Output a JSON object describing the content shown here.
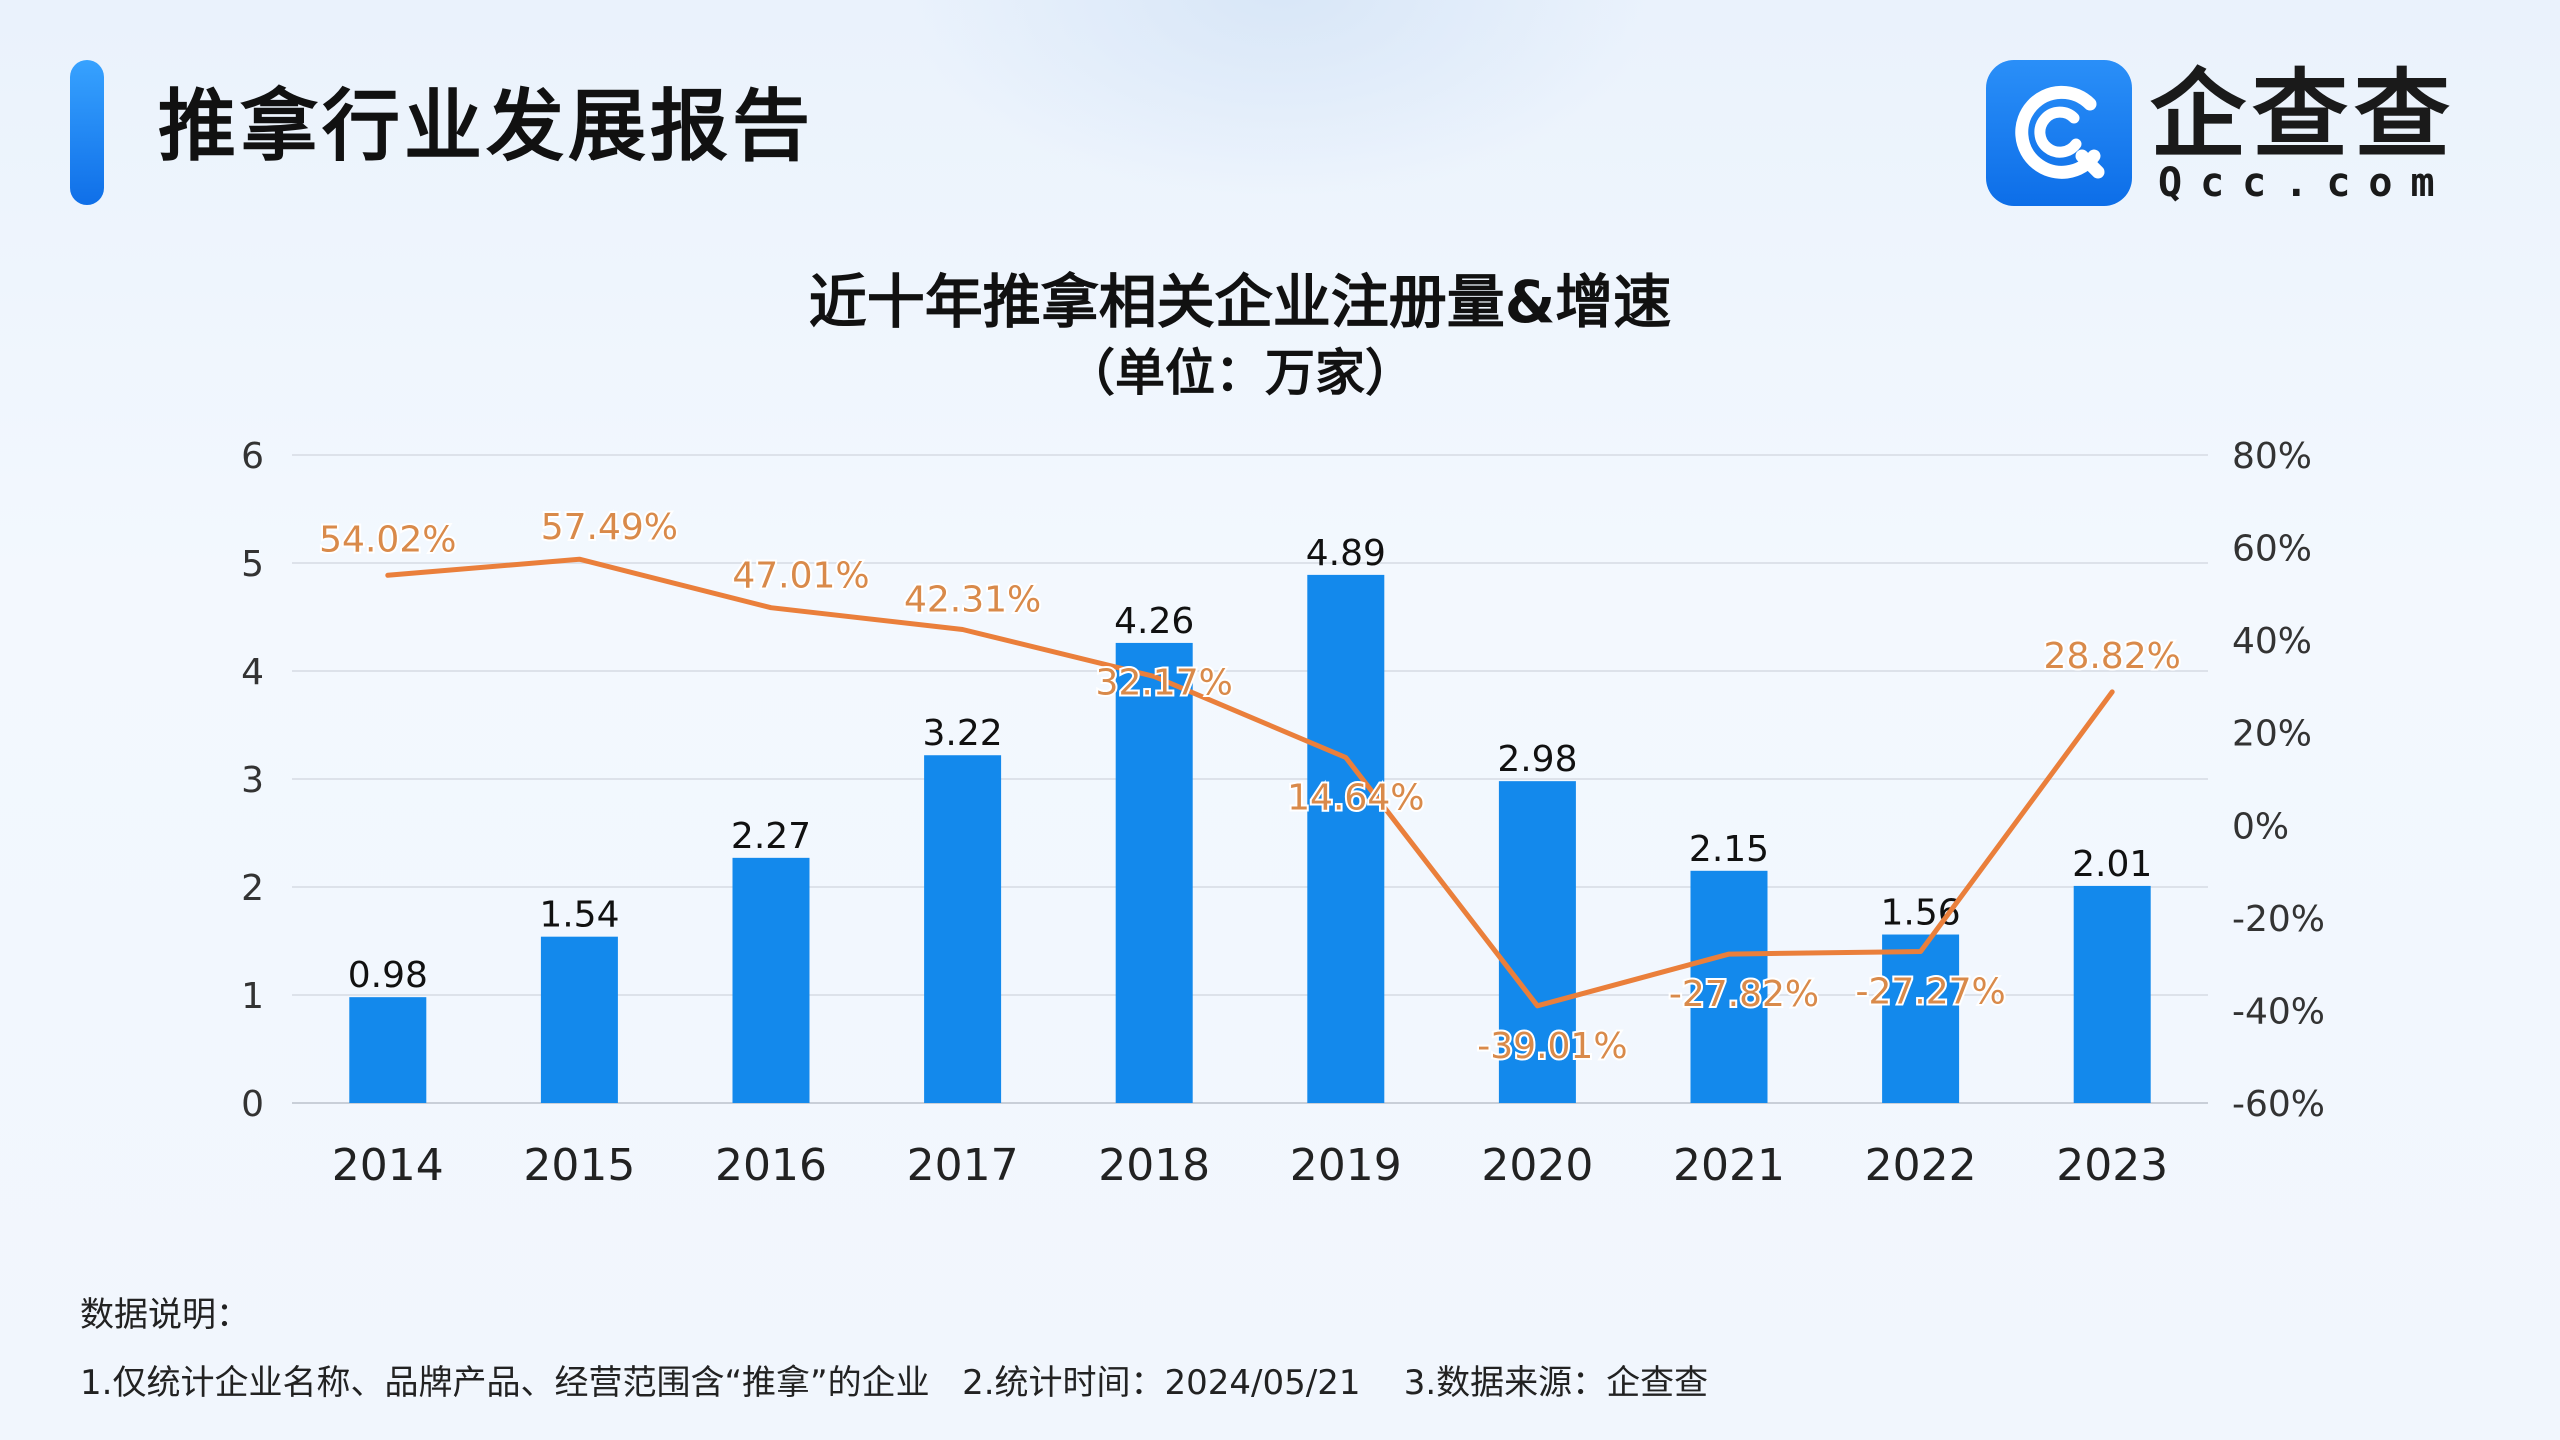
{
  "header": {
    "title": "推拿行业发展报告",
    "logo_name": "企查查",
    "logo_domain": "Qcc.com"
  },
  "chart_data": {
    "type": "bar",
    "title": "近十年推拿相关企业注册量&增速",
    "subtitle": "（单位：万家）",
    "categories": [
      "2014",
      "2015",
      "2016",
      "2017",
      "2018",
      "2019",
      "2020",
      "2021",
      "2022",
      "2023"
    ],
    "values": [
      0.98,
      1.54,
      2.27,
      3.22,
      4.26,
      4.89,
      2.98,
      2.15,
      1.56,
      2.01
    ],
    "value_labels": [
      "0.98",
      "1.54",
      "2.27",
      "3.22",
      "4.26",
      "4.89",
      "2.98",
      "2.15",
      "1.56",
      "2.01"
    ],
    "growth": [
      54.02,
      57.49,
      47.01,
      42.31,
      32.17,
      14.64,
      -39.01,
      -27.82,
      -27.27,
      28.82
    ],
    "growth_labels": [
      "54.02%",
      "57.49%",
      "47.01%",
      "42.31%",
      "32.17%",
      "14.64%",
      "-39.01%",
      "-27.82%",
      "-27.27%",
      "28.82%"
    ],
    "ylim_left": [
      0,
      6
    ],
    "yticks_left": [
      "0",
      "1",
      "2",
      "3",
      "4",
      "5",
      "6"
    ],
    "ylim_right": [
      -60,
      80
    ],
    "yticks_right": [
      "-60%",
      "-40%",
      "-20%",
      "0%",
      "20%",
      "40%",
      "60%",
      "80%"
    ],
    "grid": true,
    "colors": {
      "bar": "#1389ec",
      "line": "#ea7f3b",
      "growth_label": "#d98a4a"
    }
  },
  "notes": {
    "heading": "数据说明：",
    "text": "1.仅统计企业名称、品牌产品、经营范围含“推拿”的企业   2.统计时间：2024/05/21    3.数据来源：企查查"
  }
}
